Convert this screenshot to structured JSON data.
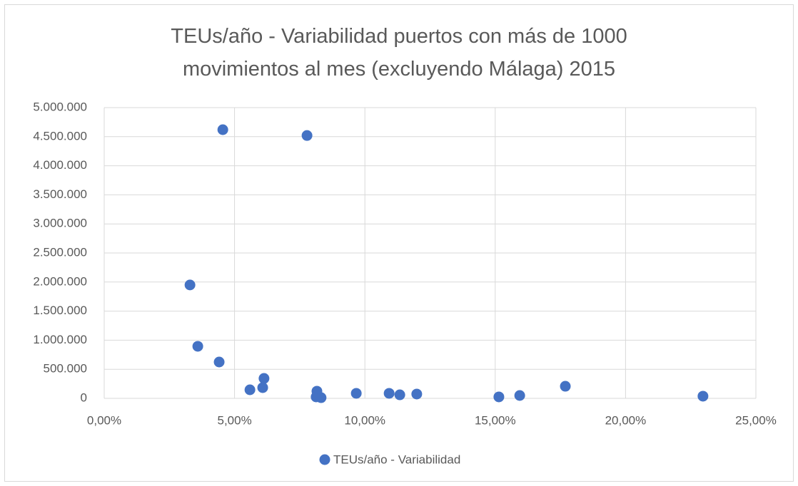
{
  "chart_data": {
    "type": "scatter",
    "title": "TEUs/año - Variabilidad puertos con más de 1000 movimientos al mes (excluyendo Málaga) 2015",
    "series": [
      {
        "name": "TEUs/año - Variabilidad",
        "color": "#4472c4",
        "x": [
          4.55,
          7.78,
          3.29,
          3.59,
          4.41,
          5.59,
          6.08,
          6.13,
          8.16,
          8.13,
          8.32,
          9.67,
          10.93,
          11.34,
          11.99,
          15.14,
          15.94,
          17.69,
          22.97
        ],
        "values": [
          4620000,
          4520000,
          1950000,
          895000,
          625000,
          147000,
          184000,
          343000,
          123000,
          25000,
          12000,
          86000,
          86000,
          61000,
          74000,
          25000,
          49000,
          208000,
          37000
        ]
      }
    ],
    "xlim": [
      0,
      25
    ],
    "xticks": [
      {
        "value": 0,
        "label": "0,00%"
      },
      {
        "value": 5,
        "label": "5,00%"
      },
      {
        "value": 10,
        "label": "10,00%"
      },
      {
        "value": 15,
        "label": "15,00%"
      },
      {
        "value": 20,
        "label": "20,00%"
      },
      {
        "value": 25,
        "label": "25,00%"
      }
    ],
    "ylim": [
      0,
      5000000
    ],
    "yticks": [
      0,
      {
        "value": 500000,
        "label": "500.000"
      },
      {
        "value": 1000000,
        "label": "1.000.000"
      },
      {
        "value": 1500000,
        "label": "1.500.000"
      },
      {
        "value": 2000000,
        "label": "2.000.000"
      },
      {
        "value": 2500000,
        "label": "2.500.000"
      },
      {
        "value": 3000000,
        "label": "3.000.000"
      },
      {
        "value": 3500000,
        "label": "3.500.000"
      },
      {
        "value": 4000000,
        "label": "4.000.000"
      },
      {
        "value": 4500000,
        "label": "4.500.000"
      },
      {
        "value": 5000000,
        "label": "5.000.000"
      }
    ],
    "grid": true,
    "legend": "bottom"
  }
}
